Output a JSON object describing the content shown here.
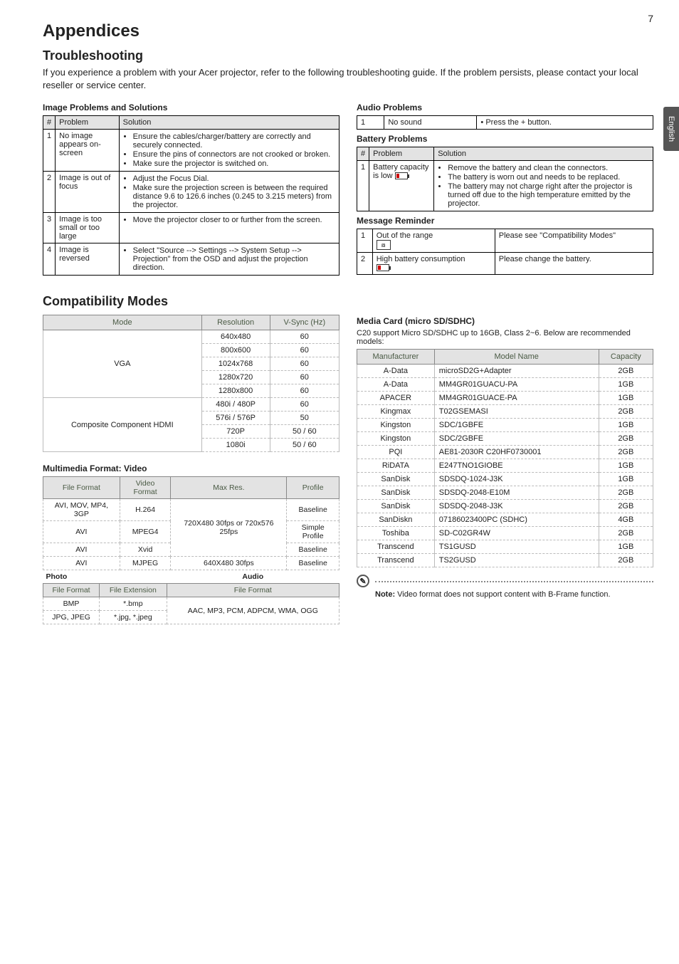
{
  "page_number": "7",
  "side_tab": "English",
  "title": "Appendices",
  "troubleshooting": {
    "heading": "Troubleshooting",
    "intro": "If you experience a problem with your Acer projector, refer to the following troubleshooting guide. If the problem persists, please contact your local reseller or service center.",
    "image_problems_title": "Image Problems and Solutions",
    "col_num": "#",
    "col_problem": "Problem",
    "col_solution": "Solution",
    "rows": [
      {
        "n": "1",
        "p": "No image appears on-screen",
        "s": [
          "Ensure the cables/charger/battery are correctly and securely connected.",
          "Ensure the pins of connectors are not crooked or broken.",
          "Make sure the projector is switched on."
        ]
      },
      {
        "n": "2",
        "p": "Image is out of focus",
        "s": [
          "Adjust the Focus Dial.",
          "Make sure the projection screen is between the required distance 9.6 to 126.6 inches (0.245 to 3.215 meters) from the projector."
        ]
      },
      {
        "n": "3",
        "p": "Image is too small or too large",
        "s": [
          "Move the projector closer to or further from the screen."
        ]
      },
      {
        "n": "4",
        "p": "Image is reversed",
        "s": [
          "Select \"Source --> Settings --> System Setup --> Projection\" from the OSD and adjust the projection direction."
        ]
      }
    ],
    "audio_title": "Audio Problems",
    "audio_row": {
      "n": "1",
      "p": "No sound",
      "s": "Press the       + button."
    },
    "battery_title": "Battery Problems",
    "battery_row": {
      "n": "1",
      "p": "Battery capacity is low",
      "s": [
        "Remove the battery and clean the connectors.",
        "The battery is worn out and needs to be replaced.",
        "The battery may not charge right after the projector is turned off due to the high temperature emitted by the projector."
      ]
    },
    "message_title": "Message Reminder",
    "msg_rows": [
      {
        "n": "1",
        "p": "Out of the range",
        "s": "Please see \"Compatibility Modes\""
      },
      {
        "n": "2",
        "p": "High battery consumption",
        "s": "Please change the battery."
      }
    ]
  },
  "compat": {
    "heading": "Compatibility Modes",
    "cols": [
      "Mode",
      "Resolution",
      "V-Sync (Hz)"
    ],
    "groups": [
      {
        "mode": "VGA",
        "rows": [
          [
            "640x480",
            "60"
          ],
          [
            "800x600",
            "60"
          ],
          [
            "1024x768",
            "60"
          ],
          [
            "1280x720",
            "60"
          ],
          [
            "1280x800",
            "60"
          ]
        ]
      },
      {
        "mode": "Composite Component HDMI",
        "rows": [
          [
            "480i / 480P",
            "60"
          ],
          [
            "576i / 576P",
            "50"
          ],
          [
            "720P",
            "50 / 60"
          ],
          [
            "1080i",
            "50 / 60"
          ]
        ]
      }
    ]
  },
  "mm": {
    "heading": "Multimedia Format: Video",
    "cols": [
      "File Format",
      "Video Format",
      "Max Res.",
      "Profile"
    ],
    "rows": [
      [
        "AVI, MOV, MP4, 3GP",
        "H.264",
        "720X480 30fps or 720x576 25fps",
        "Baseline"
      ],
      [
        "AVI",
        "MPEG4",
        "",
        "Simple Profile"
      ],
      [
        "AVI",
        "Xvid",
        "",
        "Baseline"
      ],
      [
        "AVI",
        "MJPEG",
        "640X480 30fps",
        "Baseline"
      ]
    ],
    "photo_label": "Photo",
    "audio_label": "Audio",
    "pa_cols": [
      "File Format",
      "File Extension",
      "File Format"
    ],
    "pa_rows": [
      [
        "BMP",
        "*.bmp",
        "AAC, MP3, PCM, ADPCM, WMA, OGG"
      ],
      [
        "JPG, JPEG",
        "*.jpg, *.jpeg",
        ""
      ]
    ]
  },
  "media": {
    "heading": "Media Card (micro SD/SDHC)",
    "intro": "C20 support Micro SD/SDHC up to 16GB, Class 2~6. Below are recommended models:",
    "cols": [
      "Manufacturer",
      "Model Name",
      "Capacity"
    ],
    "rows": [
      [
        "A-Data",
        "microSD2G+Adapter",
        "2GB"
      ],
      [
        "A-Data",
        "MM4GR01GUACU-PA",
        "1GB"
      ],
      [
        "APACER",
        "MM4GR01GUACE-PA",
        "1GB"
      ],
      [
        "Kingmax",
        "T02GSEMASI",
        "2GB"
      ],
      [
        "Kingston",
        "SDC/1GBFE",
        "1GB"
      ],
      [
        "Kingston",
        "SDC/2GBFE",
        "2GB"
      ],
      [
        "PQI",
        "AE81-2030R C20HF0730001",
        "2GB"
      ],
      [
        "RiDATA",
        "E247TNO1GIOBE",
        "1GB"
      ],
      [
        "SanDisk",
        "SDSDQ-1024-J3K",
        "1GB"
      ],
      [
        "SanDisk",
        "SDSDQ-2048-E10M",
        "2GB"
      ],
      [
        "SanDisk",
        "SDSDQ-2048-J3K",
        "2GB"
      ],
      [
        "SanDiskn",
        "07186023400PC (SDHC)",
        "4GB"
      ],
      [
        "Toshiba",
        "SD-C02GR4W",
        "2GB"
      ],
      [
        "Transcend",
        "TS1GUSD",
        "1GB"
      ],
      [
        "Transcend",
        "TS2GUSD",
        "2GB"
      ]
    ]
  },
  "note": {
    "label": "Note:",
    "text": " Video format does not support content with B-Frame function."
  }
}
